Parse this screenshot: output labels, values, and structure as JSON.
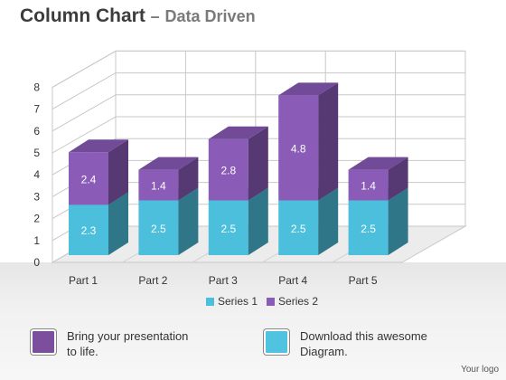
{
  "header": {
    "title": "Column Chart",
    "dash": "–",
    "subtitle": "Data Driven"
  },
  "chart_data": {
    "type": "bar",
    "stacked": true,
    "projection": "3d",
    "categories": [
      "Part 1",
      "Part 2",
      "Part 3",
      "Part 4",
      "Part 5"
    ],
    "series": [
      {
        "name": "Series 1",
        "values": [
          2.3,
          2.5,
          2.5,
          2.5,
          2.5
        ],
        "color": "#4cbfdc"
      },
      {
        "name": "Series 2",
        "values": [
          2.4,
          1.4,
          2.8,
          4.8,
          1.4
        ],
        "color": "#8a5cb8"
      }
    ],
    "ylim": [
      0,
      8
    ],
    "yticks": [
      "0",
      "1",
      "2",
      "3",
      "4",
      "5",
      "6",
      "7",
      "8"
    ],
    "grid": true,
    "legend": "bottom"
  },
  "callouts": [
    {
      "text_line1": "Bring your presentation",
      "text_line2": "to life.",
      "color": "#7c4e9e"
    },
    {
      "text_line1": "Download this awesome",
      "text_line2": "Diagram.",
      "color": "#4fc3e0"
    }
  ],
  "footer": {
    "logo": "Your logo"
  }
}
